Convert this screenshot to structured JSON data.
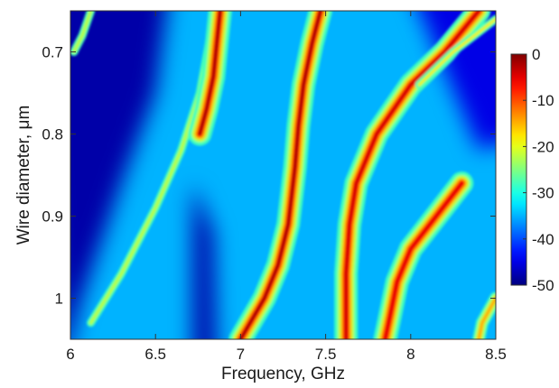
{
  "chart_data": {
    "type": "heatmap",
    "title": "",
    "xlabel": "Frequency, GHz",
    "ylabel": "Wire diameter, μm",
    "xlim": [
      6.0,
      8.5
    ],
    "ylim": [
      0.65,
      1.05
    ],
    "y_axis_inverted": true,
    "x_ticks": [
      6,
      6.5,
      7,
      7.5,
      8,
      8.5
    ],
    "x_tick_labels": [
      "6",
      "6.5",
      "7",
      "7.5",
      "8",
      "8.5"
    ],
    "y_ticks": [
      0.7,
      0.8,
      0.9,
      1.0
    ],
    "y_tick_labels": [
      "0.7",
      "0.8",
      "0.9",
      "1"
    ],
    "colorbar": {
      "min": -50,
      "max": 0,
      "ticks": [
        0,
        -10,
        -20,
        -30,
        -40,
        -50
      ],
      "tick_labels": [
        "0",
        "-10",
        "-20",
        "-30",
        "-40",
        "-50"
      ],
      "position": "right",
      "colormap": "jet"
    },
    "background_level": -35,
    "low_regions": [
      {
        "name": "lower-left",
        "level": -48,
        "diameter_range": [
          0.65,
          1.05
        ]
      },
      {
        "name": "upper-right",
        "level": -45,
        "frequency_range": [
          7.9,
          8.5
        ],
        "diameter_range": [
          0.65,
          0.8
        ]
      }
    ],
    "resonance_branches": [
      {
        "name": "branch-1",
        "peak_level": -22,
        "points": [
          [
            6.02,
            0.7
          ],
          [
            6.07,
            0.68
          ],
          [
            6.12,
            0.65
          ]
        ]
      },
      {
        "name": "branch-2",
        "peak_level": -22,
        "points": [
          [
            6.12,
            1.03
          ],
          [
            6.3,
            0.97
          ],
          [
            6.5,
            0.89
          ],
          [
            6.65,
            0.82
          ],
          [
            6.76,
            0.75
          ],
          [
            6.85,
            0.65
          ]
        ]
      },
      {
        "name": "branch-3",
        "peak_level": -2,
        "points": [
          [
            6.88,
            0.65
          ],
          [
            6.86,
            0.69
          ],
          [
            6.84,
            0.73
          ],
          [
            6.8,
            0.77
          ],
          [
            6.76,
            0.8
          ]
        ]
      },
      {
        "name": "branch-4",
        "peak_level": -2,
        "points": [
          [
            7.47,
            0.65
          ],
          [
            7.42,
            0.69
          ],
          [
            7.37,
            0.74
          ],
          [
            7.34,
            0.79
          ],
          [
            7.32,
            0.84
          ],
          [
            7.28,
            0.91
          ],
          [
            7.22,
            0.96
          ],
          [
            7.14,
            1.0
          ],
          [
            7.0,
            1.05
          ]
        ]
      },
      {
        "name": "branch-5",
        "peak_level": -4,
        "points": [
          [
            8.4,
            0.65
          ],
          [
            8.2,
            0.7
          ],
          [
            8.0,
            0.74
          ],
          [
            7.8,
            0.8
          ],
          [
            7.68,
            0.86
          ],
          [
            7.64,
            0.91
          ],
          [
            7.62,
            0.97
          ],
          [
            7.62,
            1.05
          ]
        ]
      },
      {
        "name": "branch-6",
        "peak_level": -18,
        "points": [
          [
            8.5,
            0.66
          ],
          [
            8.25,
            0.7
          ],
          [
            8.05,
            0.74
          ]
        ]
      },
      {
        "name": "branch-7",
        "peak_level": -5,
        "points": [
          [
            8.3,
            0.86
          ],
          [
            8.15,
            0.9
          ],
          [
            8.0,
            0.94
          ],
          [
            7.92,
            0.98
          ],
          [
            7.88,
            1.02
          ],
          [
            7.85,
            1.05
          ]
        ]
      },
      {
        "name": "branch-8",
        "peak_level": -15,
        "points": [
          [
            8.5,
            1.0
          ],
          [
            8.42,
            1.03
          ],
          [
            8.4,
            1.05
          ]
        ]
      }
    ]
  }
}
